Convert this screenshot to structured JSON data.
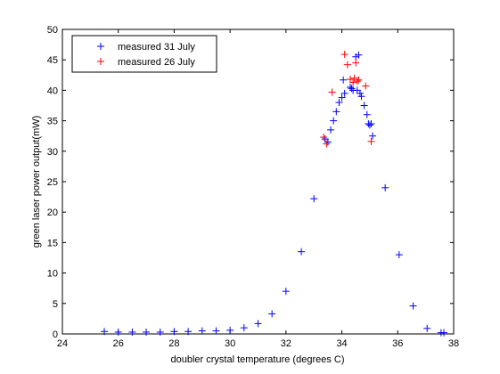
{
  "chart_data": {
    "type": "scatter",
    "title": "",
    "xlabel": "doubler crystal temperature (degrees C)",
    "ylabel": "green laser power output(mW)",
    "xlim": [
      24,
      38
    ],
    "ylim": [
      0,
      50
    ],
    "xticks": [
      24,
      26,
      28,
      30,
      32,
      34,
      36,
      38
    ],
    "yticks": [
      0,
      5,
      10,
      15,
      20,
      25,
      30,
      35,
      40,
      45,
      50
    ],
    "grid": false,
    "legend_position": "top-left",
    "marker": "+",
    "series": [
      {
        "name": "measured 31 July",
        "color": "#0000ff",
        "points": [
          [
            25.5,
            0.4
          ],
          [
            26.0,
            0.3
          ],
          [
            26.5,
            0.3
          ],
          [
            27.0,
            0.3
          ],
          [
            27.5,
            0.3
          ],
          [
            28.0,
            0.4
          ],
          [
            28.5,
            0.4
          ],
          [
            29.0,
            0.5
          ],
          [
            29.5,
            0.5
          ],
          [
            30.0,
            0.6
          ],
          [
            30.5,
            1.0
          ],
          [
            31.0,
            1.7
          ],
          [
            31.5,
            3.3
          ],
          [
            32.0,
            7.0
          ],
          [
            32.55,
            13.5
          ],
          [
            33.0,
            22.2
          ],
          [
            33.4,
            32.0
          ],
          [
            33.5,
            31.5
          ],
          [
            33.6,
            33.5
          ],
          [
            33.7,
            35.0
          ],
          [
            33.8,
            36.5
          ],
          [
            33.9,
            38.0
          ],
          [
            34.0,
            38.8
          ],
          [
            34.05,
            41.7
          ],
          [
            34.1,
            39.5
          ],
          [
            34.3,
            40.5
          ],
          [
            34.35,
            40.3
          ],
          [
            34.4,
            40.0
          ],
          [
            34.5,
            45.5
          ],
          [
            34.55,
            40.0
          ],
          [
            34.6,
            45.8
          ],
          [
            34.65,
            39.5
          ],
          [
            34.7,
            39.0
          ],
          [
            34.8,
            37.5
          ],
          [
            34.9,
            36.0
          ],
          [
            34.95,
            34.5
          ],
          [
            35.0,
            34.3
          ],
          [
            35.05,
            34.5
          ],
          [
            35.1,
            32.5
          ],
          [
            35.55,
            24.0
          ],
          [
            36.05,
            13.0
          ],
          [
            36.55,
            4.6
          ],
          [
            37.05,
            0.9
          ],
          [
            37.55,
            0.2
          ],
          [
            37.65,
            0.2
          ]
        ]
      },
      {
        "name": "measured 26 July",
        "color": "#ff0000",
        "points": [
          [
            33.35,
            32.3
          ],
          [
            33.45,
            31.2
          ],
          [
            33.65,
            39.7
          ],
          [
            34.1,
            45.9
          ],
          [
            34.2,
            44.2
          ],
          [
            34.3,
            41.8
          ],
          [
            34.4,
            41.3
          ],
          [
            34.45,
            42.0
          ],
          [
            34.5,
            44.5
          ],
          [
            34.55,
            41.5
          ],
          [
            34.6,
            41.7
          ],
          [
            34.85,
            40.7
          ],
          [
            35.05,
            31.6
          ]
        ]
      }
    ]
  }
}
